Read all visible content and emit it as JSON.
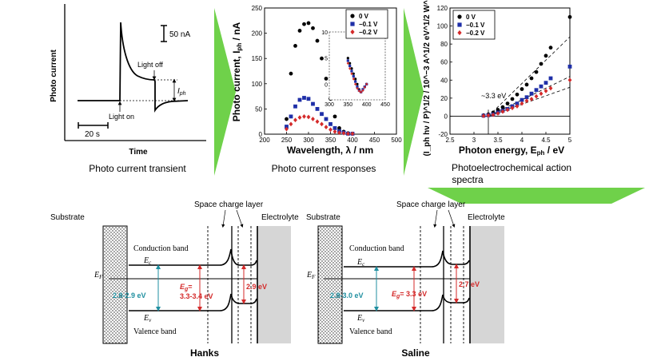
{
  "panels": {
    "transient": {
      "ylabel": "Photo current",
      "xlabel": "Time",
      "scale_bar_current": "50 nA",
      "scale_bar_time": "20 s",
      "light_off": "Light off",
      "light_on": "Light on",
      "iph": "I",
      "iph_sub": "ph",
      "caption": "Photo current transient"
    },
    "responses": {
      "ylabel": "Photo current, I",
      "ylabel_sub": "ph",
      "ylabel_unit": " / nA",
      "xlabel": "Wavelength, λ / nm",
      "caption": "Photo current responses",
      "legend": [
        "0 V",
        "−0.1 V",
        "−0.2 V"
      ]
    },
    "action": {
      "ylabel": "(I_ph hν / P)^1/2 / 10^−3 A^1/2 eV^1/2 W^−1/2",
      "xlabel": "Photon energy, E",
      "xlabel_sub": "ph",
      "xlabel_unit": " / eV",
      "caption_line1": "Photoelectrochemical action",
      "caption_line2": "spectra",
      "annotation": "~3.3 eV",
      "legend": [
        "0 V",
        "−0.1 V",
        "−0.2 V"
      ]
    }
  },
  "band_diagrams": [
    {
      "title": "Hanks",
      "substrate": "Substrate",
      "space_charge": "Space charge layer",
      "electrolyte": "Electrolyte",
      "conduction_band": "Conduction band",
      "valence_band": "Valence band",
      "ec": "E",
      "ec_sub": "c",
      "ev": "E",
      "ev_sub": "v",
      "ef": "E",
      "ef_sub": "F",
      "gap_left": "2.8-2.9 eV",
      "eg_label": "E",
      "eg_sub": "g",
      "eg_value_line1": "=",
      "eg_value_line2": "3.3-3.4 eV",
      "gap_right": "2.9 eV"
    },
    {
      "title": "Saline",
      "substrate": "Substrate",
      "space_charge": "Space charge layer",
      "electrolyte": "Electrolyte",
      "conduction_band": "Conduction band",
      "valence_band": "Valence band",
      "ec": "E",
      "ec_sub": "c",
      "ev": "E",
      "ev_sub": "v",
      "ef": "E",
      "ef_sub": "F",
      "gap_left": "2.8-3.0 eV",
      "eg_label": "E",
      "eg_sub": "g",
      "eg_value_line1": "= 3.3 eV",
      "eg_value_line2": "",
      "gap_right": "2.7 eV"
    }
  ],
  "chart_data": [
    {
      "type": "scatter",
      "title": "Photo current responses",
      "xlabel": "Wavelength, λ / nm",
      "ylabel": "Photo current, Iph / nA",
      "xlim": [
        200,
        500
      ],
      "ylim": [
        0,
        250
      ],
      "xticks": [
        200,
        250,
        300,
        350,
        400,
        450,
        500
      ],
      "yticks": [
        0,
        50,
        100,
        150,
        200,
        250
      ],
      "series": [
        {
          "name": "0 V",
          "color": "#000000",
          "marker": "circle",
          "x": [
            250,
            260,
            270,
            280,
            290,
            300,
            310,
            320,
            330,
            340,
            350,
            360,
            370,
            380,
            390,
            400
          ],
          "y": [
            30,
            120,
            175,
            205,
            218,
            220,
            210,
            185,
            150,
            110,
            70,
            35,
            12,
            5,
            2,
            1
          ]
        },
        {
          "name": "−0.1 V",
          "color": "#1f2fa8",
          "marker": "square",
          "x": [
            250,
            260,
            270,
            280,
            290,
            300,
            310,
            320,
            330,
            340,
            350,
            360,
            370,
            380,
            390,
            400
          ],
          "y": [
            15,
            35,
            55,
            68,
            72,
            70,
            60,
            50,
            40,
            30,
            20,
            12,
            6,
            3,
            1,
            1
          ]
        },
        {
          "name": "−0.2 V",
          "color": "#d42a2a",
          "marker": "diamond",
          "x": [
            250,
            260,
            270,
            280,
            290,
            300,
            310,
            320,
            330,
            340,
            350,
            360,
            370,
            380,
            390,
            400
          ],
          "y": [
            10,
            20,
            28,
            33,
            35,
            34,
            30,
            25,
            20,
            14,
            9,
            5,
            3,
            2,
            1,
            1
          ]
        }
      ],
      "inset": {
        "xlim": [
          300,
          450
        ],
        "ylim": [
          -3,
          10
        ],
        "xticks": [
          300,
          350,
          400,
          450
        ],
        "yticks": [
          0,
          5,
          10
        ],
        "series": [
          {
            "name": "0 V",
            "x": [
              350,
              355,
              360,
              365,
              370,
              375,
              380,
              385,
              390,
              395,
              400
            ],
            "y": [
              5,
              4,
              3,
              2,
              1,
              0,
              -1,
              -1.5,
              -1,
              -0.5,
              0
            ]
          },
          {
            "name": "−0.1 V",
            "x": [
              350,
              355,
              360,
              365,
              370,
              375,
              380,
              385,
              390,
              395,
              400
            ],
            "y": [
              4.5,
              3.5,
              2.5,
              1.5,
              0.5,
              -0.5,
              -1.2,
              -1.5,
              -1,
              -0.5,
              0
            ]
          },
          {
            "name": "−0.2 V",
            "x": [
              350,
              355,
              360,
              365,
              370,
              375,
              380,
              385,
              390,
              395,
              400
            ],
            "y": [
              4,
              3,
              2,
              1,
              0,
              -0.8,
              -1.3,
              -1.5,
              -1.2,
              -0.6,
              0
            ]
          }
        ]
      }
    },
    {
      "type": "scatter",
      "title": "Photoelectrochemical action spectra",
      "xlabel": "Photon energy, Eph / eV",
      "ylabel": "(Iph hν / P)^1/2 / 10^-3 A^1/2 eV^1/2 W^-1/2",
      "xlim": [
        2.5,
        5
      ],
      "ylim": [
        -20,
        120
      ],
      "xticks": [
        2.5,
        3,
        3.5,
        4,
        4.5,
        5
      ],
      "yticks": [
        -20,
        0,
        20,
        40,
        60,
        80,
        100,
        120
      ],
      "annotation": {
        "text": "~3.3 eV",
        "x": 3.3
      },
      "series": [
        {
          "name": "0 V",
          "color": "#000000",
          "marker": "circle",
          "x": [
            3.2,
            3.3,
            3.4,
            3.5,
            3.6,
            3.7,
            3.8,
            3.9,
            4.0,
            4.1,
            4.2,
            4.3,
            4.4,
            4.5,
            4.6,
            5.0
          ],
          "y": [
            1,
            2,
            4,
            7,
            10,
            14,
            19,
            24,
            30,
            35,
            42,
            49,
            58,
            67,
            76,
            110
          ]
        },
        {
          "name": "−0.1 V",
          "color": "#1f2fa8",
          "marker": "square",
          "x": [
            3.2,
            3.3,
            3.4,
            3.5,
            3.6,
            3.7,
            3.8,
            3.9,
            4.0,
            4.1,
            4.2,
            4.3,
            4.4,
            4.5,
            4.6,
            5.0
          ],
          "y": [
            0.5,
            1,
            2,
            4,
            6,
            8,
            11,
            14,
            18,
            21,
            25,
            29,
            33,
            37,
            42,
            55
          ]
        },
        {
          "name": "−0.2 V",
          "color": "#d42a2a",
          "marker": "diamond",
          "x": [
            3.2,
            3.3,
            3.4,
            3.5,
            3.6,
            3.7,
            3.8,
            3.9,
            4.0,
            4.1,
            4.2,
            4.3,
            4.4,
            4.5,
            4.6,
            5.0
          ],
          "y": [
            0.3,
            0.8,
            1.5,
            3,
            5,
            7,
            9,
            11,
            14,
            17,
            19,
            22,
            25,
            28,
            31,
            40
          ]
        }
      ]
    }
  ]
}
